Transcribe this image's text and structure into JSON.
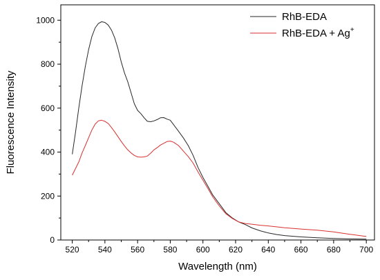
{
  "chart_data": {
    "type": "line",
    "xlabel": "Wavelength (nm)",
    "ylabel": "Fluorescence Intensity",
    "xlim": [
      513,
      705
    ],
    "ylim": [
      0,
      1070
    ],
    "x_ticks": [
      520,
      540,
      560,
      580,
      600,
      620,
      640,
      660,
      680,
      700
    ],
    "y_ticks": [
      0,
      200,
      400,
      600,
      800,
      1000
    ],
    "grid": false,
    "legend_position": "top-right",
    "series": [
      {
        "name": "RhB-EDA",
        "color": "#262626",
        "points": [
          [
            520,
            390
          ],
          [
            522,
            490
          ],
          [
            524,
            600
          ],
          [
            526,
            700
          ],
          [
            528,
            790
          ],
          [
            530,
            865
          ],
          [
            532,
            925
          ],
          [
            534,
            965
          ],
          [
            536,
            985
          ],
          [
            538,
            993
          ],
          [
            540,
            990
          ],
          [
            542,
            978
          ],
          [
            544,
            955
          ],
          [
            546,
            920
          ],
          [
            548,
            870
          ],
          [
            550,
            810
          ],
          [
            552,
            760
          ],
          [
            554,
            720
          ],
          [
            556,
            670
          ],
          [
            558,
            620
          ],
          [
            560,
            590
          ],
          [
            562,
            575
          ],
          [
            564,
            556
          ],
          [
            566,
            540
          ],
          [
            568,
            538
          ],
          [
            570,
            542
          ],
          [
            572,
            548
          ],
          [
            574,
            556
          ],
          [
            576,
            557
          ],
          [
            578,
            550
          ],
          [
            580,
            545
          ],
          [
            582,
            525
          ],
          [
            585,
            495
          ],
          [
            588,
            465
          ],
          [
            591,
            430
          ],
          [
            594,
            385
          ],
          [
            597,
            330
          ],
          [
            600,
            285
          ],
          [
            603,
            245
          ],
          [
            606,
            205
          ],
          [
            610,
            165
          ],
          [
            614,
            125
          ],
          [
            618,
            100
          ],
          [
            622,
            82
          ],
          [
            626,
            70
          ],
          [
            630,
            55
          ],
          [
            635,
            42
          ],
          [
            640,
            32
          ],
          [
            645,
            25
          ],
          [
            650,
            20
          ],
          [
            660,
            14
          ],
          [
            670,
            10
          ],
          [
            680,
            7
          ],
          [
            690,
            5
          ],
          [
            700,
            4
          ]
        ]
      },
      {
        "name": "RhB-EDA + Ag",
        "name_superscript": "+",
        "color": "#d92f2f",
        "points": [
          [
            520,
            295
          ],
          [
            522,
            325
          ],
          [
            524,
            355
          ],
          [
            526,
            395
          ],
          [
            528,
            430
          ],
          [
            530,
            465
          ],
          [
            532,
            500
          ],
          [
            534,
            527
          ],
          [
            536,
            542
          ],
          [
            538,
            545
          ],
          [
            540,
            540
          ],
          [
            542,
            530
          ],
          [
            544,
            512
          ],
          [
            546,
            492
          ],
          [
            548,
            470
          ],
          [
            550,
            448
          ],
          [
            552,
            428
          ],
          [
            554,
            410
          ],
          [
            556,
            396
          ],
          [
            558,
            385
          ],
          [
            560,
            378
          ],
          [
            562,
            377
          ],
          [
            564,
            378
          ],
          [
            566,
            382
          ],
          [
            568,
            395
          ],
          [
            570,
            410
          ],
          [
            572,
            420
          ],
          [
            574,
            432
          ],
          [
            576,
            440
          ],
          [
            578,
            448
          ],
          [
            580,
            450
          ],
          [
            582,
            445
          ],
          [
            585,
            430
          ],
          [
            588,
            405
          ],
          [
            591,
            380
          ],
          [
            594,
            350
          ],
          [
            597,
            310
          ],
          [
            600,
            272
          ],
          [
            603,
            235
          ],
          [
            606,
            196
          ],
          [
            610,
            155
          ],
          [
            614,
            120
          ],
          [
            618,
            98
          ],
          [
            622,
            82
          ],
          [
            626,
            75
          ],
          [
            630,
            72
          ],
          [
            635,
            67
          ],
          [
            640,
            64
          ],
          [
            645,
            60
          ],
          [
            650,
            56
          ],
          [
            660,
            50
          ],
          [
            670,
            45
          ],
          [
            680,
            37
          ],
          [
            690,
            26
          ],
          [
            700,
            16
          ]
        ]
      }
    ]
  }
}
